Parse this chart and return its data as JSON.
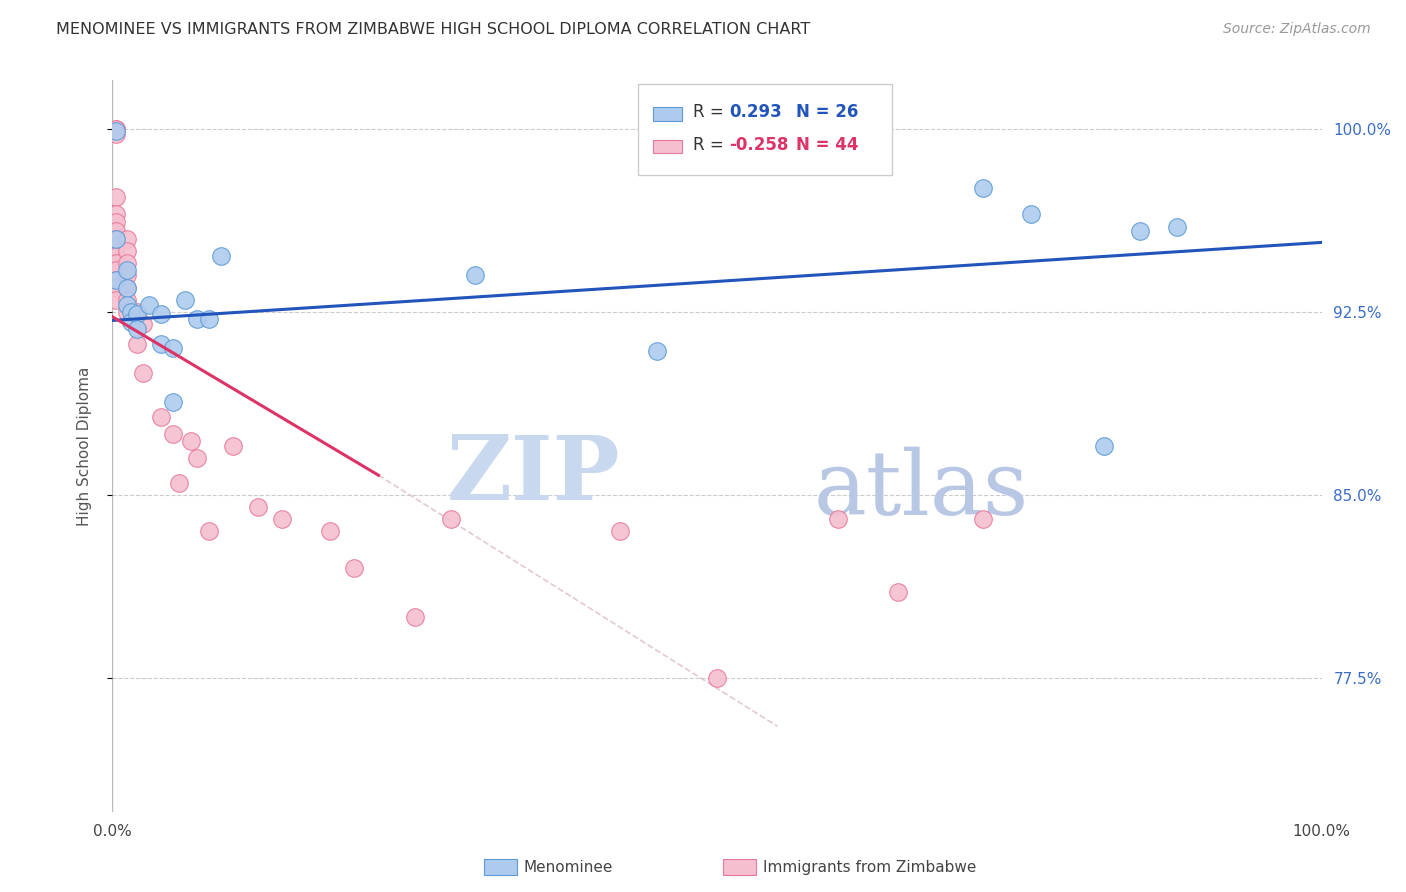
{
  "title": "MENOMINEE VS IMMIGRANTS FROM ZIMBABWE HIGH SCHOOL DIPLOMA CORRELATION CHART",
  "source": "Source: ZipAtlas.com",
  "ylabel": "High School Diploma",
  "xlim": [
    0.0,
    1.0
  ],
  "ylim": [
    0.72,
    1.02
  ],
  "yticks": [
    0.775,
    0.85,
    0.925,
    1.0
  ],
  "ytick_labels": [
    "77.5%",
    "85.0%",
    "92.5%",
    "100.0%"
  ],
  "legend_v1": "0.293",
  "legend_n1": "26",
  "legend_v2": "-0.258",
  "legend_n2": "44",
  "watermark_zip": "ZIP",
  "watermark_atlas": "atlas",
  "menominee_color": "#aecbee",
  "menominee_edge": "#5b9bd5",
  "zimbabwe_color": "#f5bfcf",
  "zimbabwe_edge": "#e8799a",
  "line_blue": "#2255bb",
  "line_red": "#dd3366",
  "line_dashed_color": "#ddbbc8",
  "menominee_x": [
    0.003,
    0.003,
    0.003,
    0.012,
    0.012,
    0.012,
    0.015,
    0.015,
    0.02,
    0.02,
    0.03,
    0.04,
    0.04,
    0.05,
    0.05,
    0.06,
    0.07,
    0.08,
    0.09,
    0.3,
    0.45,
    0.72,
    0.76,
    0.82,
    0.85,
    0.88
  ],
  "menominee_y": [
    0.999,
    0.955,
    0.938,
    0.942,
    0.935,
    0.928,
    0.925,
    0.921,
    0.924,
    0.918,
    0.928,
    0.924,
    0.912,
    0.91,
    0.888,
    0.93,
    0.922,
    0.922,
    0.948,
    0.94,
    0.909,
    0.976,
    0.965,
    0.87,
    0.958,
    0.96
  ],
  "zimbabwe_x": [
    0.003,
    0.003,
    0.003,
    0.003,
    0.003,
    0.003,
    0.003,
    0.003,
    0.003,
    0.003,
    0.003,
    0.003,
    0.003,
    0.003,
    0.003,
    0.012,
    0.012,
    0.012,
    0.012,
    0.012,
    0.012,
    0.012,
    0.02,
    0.02,
    0.025,
    0.025,
    0.04,
    0.05,
    0.055,
    0.065,
    0.07,
    0.08,
    0.1,
    0.12,
    0.14,
    0.18,
    0.2,
    0.25,
    0.28,
    0.42,
    0.5,
    0.6,
    0.65,
    0.72
  ],
  "zimbabwe_y": [
    1.0,
    1.0,
    0.998,
    0.972,
    0.965,
    0.962,
    0.958,
    0.955,
    0.952,
    0.948,
    0.945,
    0.942,
    0.938,
    0.935,
    0.93,
    0.955,
    0.95,
    0.945,
    0.94,
    0.935,
    0.93,
    0.925,
    0.925,
    0.912,
    0.92,
    0.9,
    0.882,
    0.875,
    0.855,
    0.872,
    0.865,
    0.835,
    0.87,
    0.845,
    0.84,
    0.835,
    0.82,
    0.8,
    0.84,
    0.835,
    0.775,
    0.84,
    0.81,
    0.84
  ],
  "blue_line_x": [
    0.0,
    1.0
  ],
  "blue_line_y": [
    0.9215,
    0.9535
  ],
  "red_line_x": [
    0.0,
    0.22
  ],
  "red_line_y": [
    0.923,
    0.858
  ],
  "dashed_line_x": [
    0.22,
    0.55
  ],
  "dashed_line_y": [
    0.858,
    0.755
  ]
}
